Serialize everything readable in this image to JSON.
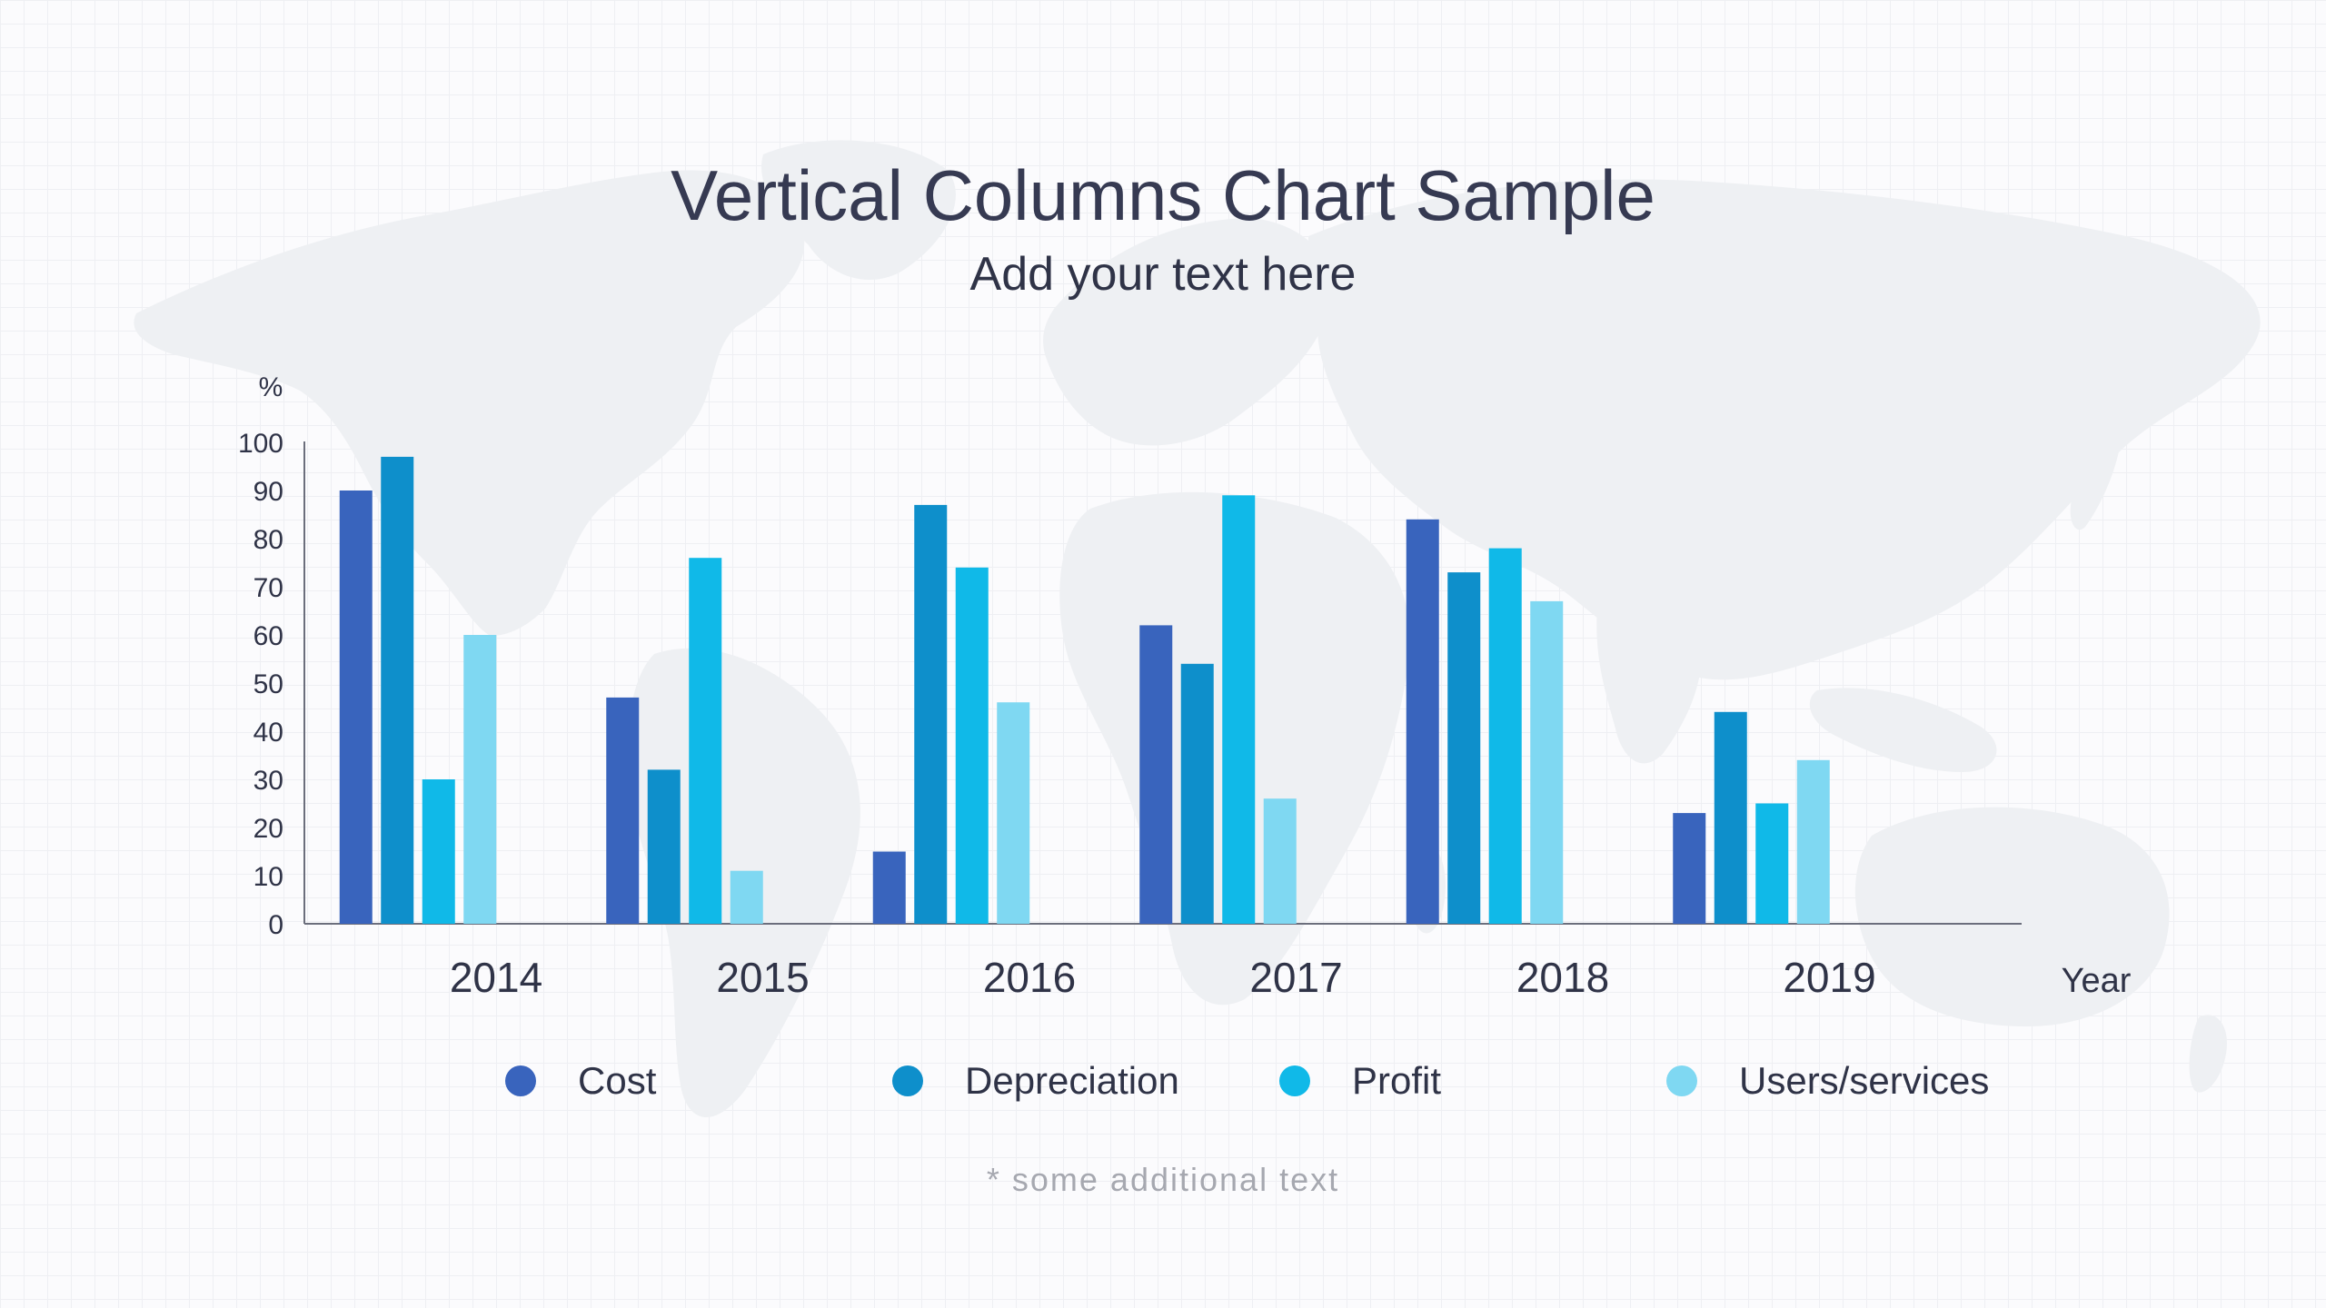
{
  "header": {
    "title": "Vertical Columns Chart Sample",
    "subtitle": "Add your text here"
  },
  "footnote": "* some additional text",
  "colors": {
    "background": "#fbfbfd",
    "grid": "#eeeff3",
    "map": "#eef0f3",
    "axis": "#6b6e7c",
    "text": "#2f3347"
  },
  "chart_data": {
    "type": "bar",
    "title": "Vertical Columns Chart Sample",
    "subtitle": "Add your text here",
    "ylabel": "%",
    "xlabel": "Year",
    "ylim": [
      0,
      100
    ],
    "yticks": [
      0,
      10,
      20,
      30,
      40,
      50,
      60,
      70,
      80,
      90,
      100
    ],
    "grid": false,
    "legend_position": "bottom",
    "categories": [
      "2014",
      "2015",
      "2016",
      "2017",
      "2018",
      "2019"
    ],
    "series": [
      {
        "name": "Cost",
        "color": "#3964bd",
        "values": [
          90,
          47,
          15,
          62,
          84,
          23
        ]
      },
      {
        "name": "Depreciation",
        "color": "#0e8fcb",
        "values": [
          97,
          32,
          87,
          54,
          73,
          44
        ]
      },
      {
        "name": "Profit",
        "color": "#10b9e8",
        "values": [
          30,
          76,
          74,
          89,
          78,
          25
        ]
      },
      {
        "name": "Users/services",
        "color": "#7fd8f2",
        "values": [
          60,
          11,
          46,
          26,
          67,
          34
        ]
      }
    ]
  }
}
